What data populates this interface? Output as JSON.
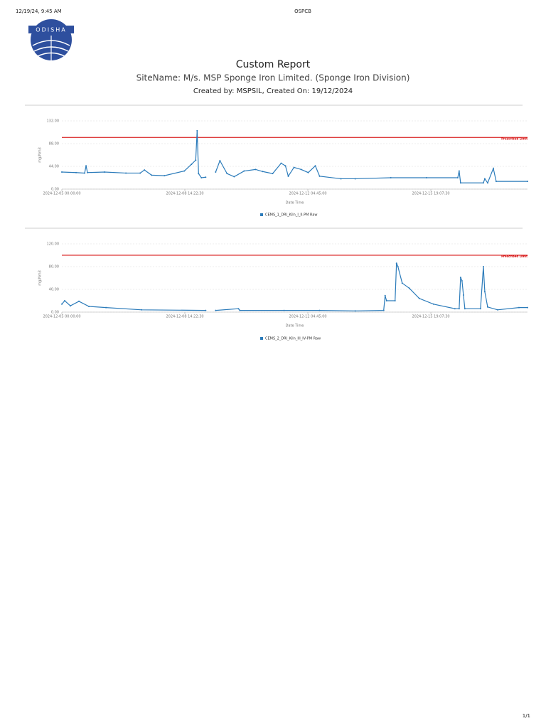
{
  "header": {
    "datetime": "12/19/24, 9:45 AM",
    "title": "OSPCB",
    "logo_text": "ODISHA"
  },
  "report": {
    "title": "Custom Report",
    "site_name": "SiteName: M/s. MSP Sponge Iron Limited. (Sponge Iron Division)",
    "created": "Created by: MSPSIL, Created On: 19/12/2024"
  },
  "chart_data": [
    {
      "type": "line",
      "x_label": "Date Time",
      "y_label": "mg/Nm3",
      "x": [
        "2024-12-05 00:00:00",
        "2024-12-05 10:00:00",
        "2024-12-05 16:00:00",
        "2024-12-05 17:00:00",
        "2024-12-05 18:00:00",
        "2024-12-06 06:00:00",
        "2024-12-06 21:00:00",
        "2024-12-07 07:00:00",
        "2024-12-07 10:00:00",
        "2024-12-07 15:00:00",
        "2024-12-08 00:00:00",
        "2024-12-08 14:00:00",
        "2024-12-08 19:00:00",
        "2024-12-08 22:00:00",
        "2024-12-08 23:00:00",
        "2024-12-09 00:00:00",
        "2024-12-09 02:00:00",
        "2024-12-09 05:00:00",
        "2024-12-09 06:00:00",
        "2024-12-09 12:00:00",
        "2024-12-09 15:00:00",
        "2024-12-09 20:00:00",
        "2024-12-10 01:00:00",
        "2024-12-10 08:00:00",
        "2024-12-10 16:00:00",
        "2024-12-10 21:00:00",
        "2024-12-11 04:00:00",
        "2024-12-11 10:00:00",
        "2024-12-11 13:00:00",
        "2024-12-11 15:00:00",
        "2024-12-11 19:00:00",
        "2024-12-12 00:00:00",
        "2024-12-12 05:00:00",
        "2024-12-12 10:00:00",
        "2024-12-12 13:00:00",
        "2024-12-13 04:00:00",
        "2024-12-13 14:00:00",
        "2024-12-14 15:00:00",
        "2024-12-15 16:00:00",
        "2024-12-16 14:00:00",
        "2024-12-16 15:00:00",
        "2024-12-16 16:00:00",
        "2024-12-17 08:00:00",
        "2024-12-17 09:00:00",
        "2024-12-17 11:00:00",
        "2024-12-17 15:00:00",
        "2024-12-17 17:00:00",
        "2024-12-18 15:00:00"
      ],
      "series": [
        {
          "name": "CEMS_1_DRI_Kiln_I_II-PM Raw",
          "color": "#2b7bba",
          "values": [
            33,
            32,
            31,
            45,
            32,
            33,
            31,
            31,
            37,
            27,
            26,
            35,
            48,
            56,
            113,
            30,
            22,
            23,
            null,
            33,
            55,
            30,
            24,
            35,
            38,
            34,
            30,
            50,
            45,
            25,
            42,
            38,
            32,
            45,
            25,
            20,
            20,
            22,
            22,
            22,
            35,
            12,
            12,
            20,
            12,
            40,
            15,
            15
          ]
        }
      ],
      "xlim": [
        "2024-12-05 00:00:00",
        "2024-12-18 15:00:00"
      ],
      "xticks": [
        "2024-12-05 00:00:00",
        "2024-12-08 14:22:30",
        "2024-12-12 04:45:00",
        "2024-12-15 19:07:30"
      ],
      "ylim": [
        0,
        132
      ],
      "yticks": [
        {
          "value": 0,
          "label": "0.00"
        },
        {
          "value": 44,
          "label": "44.00"
        },
        {
          "value": 88,
          "label": "88.00"
        },
        {
          "value": 132,
          "label": "132.00"
        }
      ],
      "threshold": {
        "value": 100,
        "label": "Prescribed Limit",
        "color": "#d40000"
      },
      "grid": true
    },
    {
      "type": "line",
      "x_label": "Date Time",
      "y_label": "mg/Nm3",
      "x": [
        "2024-12-05 00:00:00",
        "2024-12-05 02:00:00",
        "2024-12-05 06:00:00",
        "2024-12-05 12:00:00",
        "2024-12-05 19:00:00",
        "2024-12-06 07:00:00",
        "2024-12-07 08:00:00",
        "2024-12-09 05:00:00",
        "2024-12-09 06:00:00",
        "2024-12-09 12:00:00",
        "2024-12-10 04:00:00",
        "2024-12-10 05:00:00",
        "2024-12-11 12:00:00",
        "2024-12-12 13:00:00",
        "2024-12-13 14:00:00",
        "2024-12-14 10:00:00",
        "2024-12-14 11:00:00",
        "2024-12-14 12:00:00",
        "2024-12-14 18:00:00",
        "2024-12-14 19:00:00",
        "2024-12-14 20:00:00",
        "2024-12-14 23:00:00",
        "2024-12-15 04:00:00",
        "2024-12-15 11:00:00",
        "2024-12-15 21:00:00",
        "2024-12-16 12:00:00",
        "2024-12-16 15:00:00",
        "2024-12-16 16:00:00",
        "2024-12-16 17:00:00",
        "2024-12-16 18:00:00",
        "2024-12-16 19:00:00",
        "2024-12-17 06:00:00",
        "2024-12-17 08:00:00",
        "2024-12-17 09:00:00",
        "2024-12-17 11:00:00",
        "2024-12-17 18:00:00",
        "2024-12-18 09:00:00",
        "2024-12-18 15:00:00"
      ],
      "series": [
        {
          "name": "CEMS_2_DRI_Kiln_III_IV-PM Raw",
          "color": "#2b7bba",
          "values": [
            14,
            20,
            11,
            19,
            10,
            8,
            4,
            3,
            null,
            3,
            6,
            3,
            3,
            3,
            2,
            3,
            29,
            20,
            20,
            86,
            80,
            51,
            42,
            24,
            14,
            6,
            6,
            61,
            55,
            30,
            6,
            6,
            80,
            36,
            9,
            4,
            8,
            8
          ]
        }
      ],
      "xlim": [
        "2024-12-05 00:00:00",
        "2024-12-18 15:00:00"
      ],
      "xticks": [
        "2024-12-05 00:00:00",
        "2024-12-08 14:22:30",
        "2024-12-12 04:45:00",
        "2024-12-15 19:07:30"
      ],
      "ylim": [
        0,
        120
      ],
      "yticks": [
        {
          "value": 0,
          "label": "0.00"
        },
        {
          "value": 40,
          "label": "40.00"
        },
        {
          "value": 80,
          "label": "80.00"
        },
        {
          "value": 120,
          "label": "120.00"
        }
      ],
      "threshold": {
        "value": 100,
        "label": "Prescribed Limit",
        "color": "#d40000"
      },
      "grid": true
    }
  ],
  "footer": {
    "page": "1/1"
  }
}
